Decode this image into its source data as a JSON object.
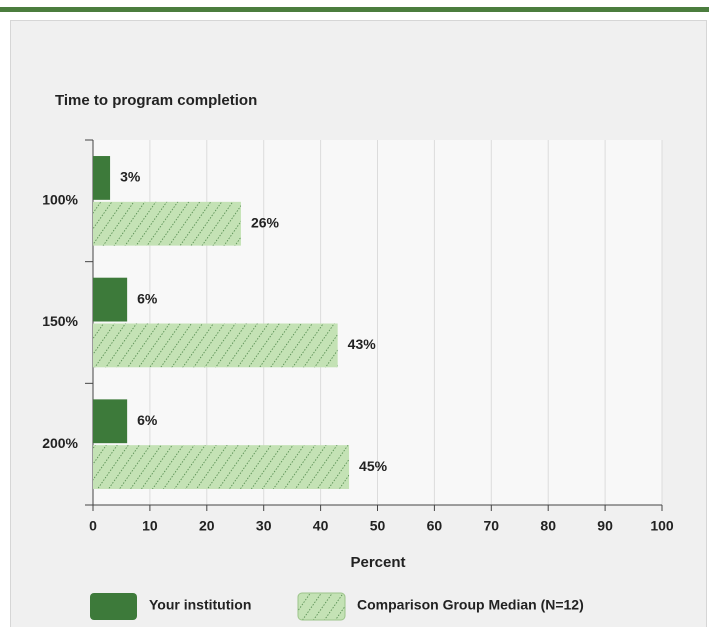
{
  "chart_data": {
    "type": "bar",
    "orientation": "horizontal",
    "title": "Time to program completion",
    "x_label": "Percent",
    "categories": [
      "100%",
      "150%",
      "200%"
    ],
    "series": [
      {
        "name": "Your institution",
        "color": "#3d7a3a",
        "pattern": "solid",
        "values": [
          3,
          6,
          6
        ],
        "value_labels": [
          "3%",
          "6%",
          "6%"
        ]
      },
      {
        "name": "Comparison Group Median (N=12)",
        "color": "#c4e2b5",
        "pattern": "hatched",
        "values": [
          26,
          43,
          45
        ],
        "value_labels": [
          "26%",
          "43%",
          "45%"
        ]
      }
    ],
    "xlim": [
      0,
      100
    ],
    "xticks": [
      0,
      10,
      20,
      30,
      40,
      50,
      60,
      70,
      80,
      90,
      100
    ],
    "grid": true
  }
}
